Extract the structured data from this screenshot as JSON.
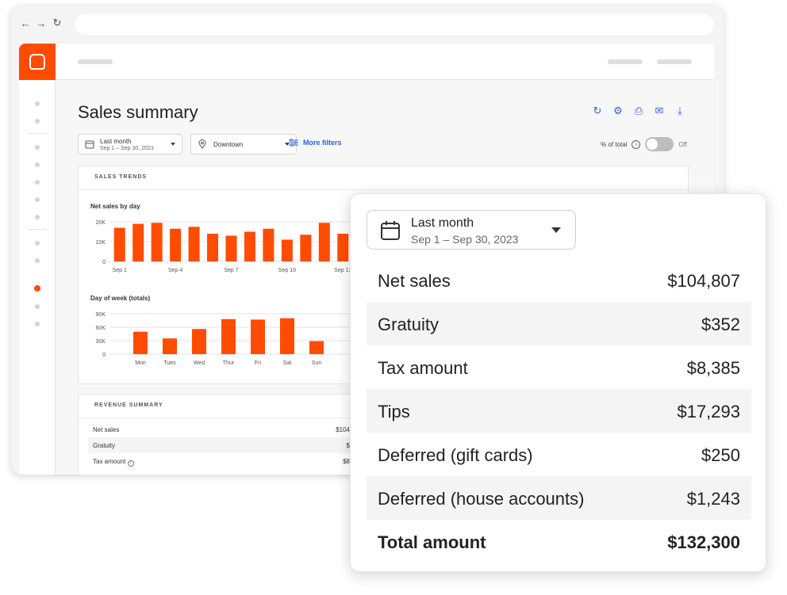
{
  "page": {
    "title": "Sales summary"
  },
  "filters": {
    "date": {
      "label": "Last month",
      "range": "Sep 1 – Sep 30, 2023"
    },
    "location": {
      "label": "Downtown"
    },
    "more_filters": "More filters",
    "pct_of_total": "% of total",
    "toggle_state": "Off"
  },
  "sales_trends": {
    "header": "SALES TRENDS"
  },
  "revenue_summary": {
    "header": "REVENUE SUMMARY",
    "rows": [
      {
        "label": "Net sales",
        "value": "$104"
      },
      {
        "label": "Gratuity",
        "value": "$"
      },
      {
        "label": "Tax amount",
        "value": "$8"
      }
    ]
  },
  "popover": {
    "date_label": "Last month",
    "date_range": "Sep 1 – Sep 30, 2023",
    "rows": [
      {
        "label": "Net sales",
        "value": "$104,807"
      },
      {
        "label": "Gratuity",
        "value": "$352"
      },
      {
        "label": "Tax amount",
        "value": "$8,385"
      },
      {
        "label": "Tips",
        "value": "$17,293"
      },
      {
        "label": "Deferred (gift cards)",
        "value": "$250"
      },
      {
        "label": "Deferred (house accounts)",
        "value": "$1,243"
      }
    ],
    "total": {
      "label": "Total amount",
      "value": "$132,300"
    }
  },
  "colors": {
    "accent": "#ff4c00",
    "link": "#2b62d9"
  },
  "chart_data": [
    {
      "type": "bar",
      "title": "Net sales by day",
      "x": [
        1,
        2,
        3,
        4,
        5,
        6,
        7,
        8,
        9,
        10,
        11,
        12,
        13
      ],
      "x_tick_labels": [
        "Sep 1",
        "Sep 4",
        "Sep 7",
        "Sep 10",
        "Sep 13"
      ],
      "x_tick_positions": [
        1,
        4,
        7,
        10,
        13
      ],
      "values": [
        17000,
        19000,
        19500,
        16500,
        17500,
        14000,
        13000,
        15000,
        16500,
        11000,
        13500,
        19500,
        14000
      ],
      "y_tick_labels": [
        "20K",
        "10K",
        "0"
      ],
      "ylim": [
        0,
        20000
      ],
      "grid": true
    },
    {
      "type": "bar",
      "title": "Day of week (totals)",
      "categories": [
        "Mon",
        "Tues",
        "Wed",
        "Thur",
        "Fri",
        "Sat",
        "Sun"
      ],
      "values": [
        50000,
        35000,
        56000,
        78000,
        77000,
        80000,
        29000
      ],
      "y_tick_labels": [
        "90K",
        "60K",
        "30K",
        "0"
      ],
      "ylim": [
        0,
        90000
      ],
      "grid": true
    }
  ]
}
